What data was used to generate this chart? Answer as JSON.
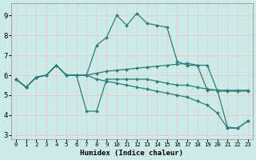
{
  "background_color": "#cceae8",
  "grid_color": "#e8c8c8",
  "line_color": "#2d7d7a",
  "xlim": [
    -0.5,
    23.5
  ],
  "ylim": [
    2.8,
    9.6
  ],
  "xticks": [
    0,
    1,
    2,
    3,
    4,
    5,
    6,
    7,
    8,
    9,
    10,
    11,
    12,
    13,
    14,
    15,
    16,
    17,
    18,
    19,
    20,
    21,
    22,
    23
  ],
  "yticks": [
    3,
    4,
    5,
    6,
    7,
    8,
    9
  ],
  "xlabel": "Humidex (Indice chaleur)",
  "lines": [
    [
      5.8,
      5.4,
      5.9,
      6.0,
      6.5,
      6.0,
      6.0,
      6.0,
      7.5,
      7.9,
      9.0,
      8.5,
      9.1,
      8.6,
      8.5,
      8.4,
      6.7,
      6.5,
      6.5,
      5.25,
      5.25,
      3.4,
      3.35,
      3.7
    ],
    [
      5.8,
      5.4,
      5.9,
      6.0,
      6.5,
      6.0,
      6.0,
      6.0,
      6.1,
      6.2,
      6.25,
      6.3,
      6.35,
      6.4,
      6.45,
      6.5,
      6.55,
      6.6,
      6.5,
      6.5,
      5.2,
      5.2,
      5.2,
      5.2
    ],
    [
      5.8,
      5.4,
      5.9,
      6.0,
      6.5,
      6.0,
      6.0,
      4.2,
      4.2,
      5.8,
      5.8,
      5.8,
      5.8,
      5.8,
      5.7,
      5.6,
      5.5,
      5.5,
      5.4,
      5.3,
      5.25,
      5.25,
      5.25,
      5.25
    ],
    [
      5.8,
      5.4,
      5.9,
      6.0,
      6.5,
      6.0,
      6.0,
      6.0,
      5.8,
      5.7,
      5.6,
      5.5,
      5.4,
      5.3,
      5.2,
      5.1,
      5.0,
      4.9,
      4.7,
      4.5,
      4.1,
      3.35,
      3.35,
      3.7
    ]
  ]
}
